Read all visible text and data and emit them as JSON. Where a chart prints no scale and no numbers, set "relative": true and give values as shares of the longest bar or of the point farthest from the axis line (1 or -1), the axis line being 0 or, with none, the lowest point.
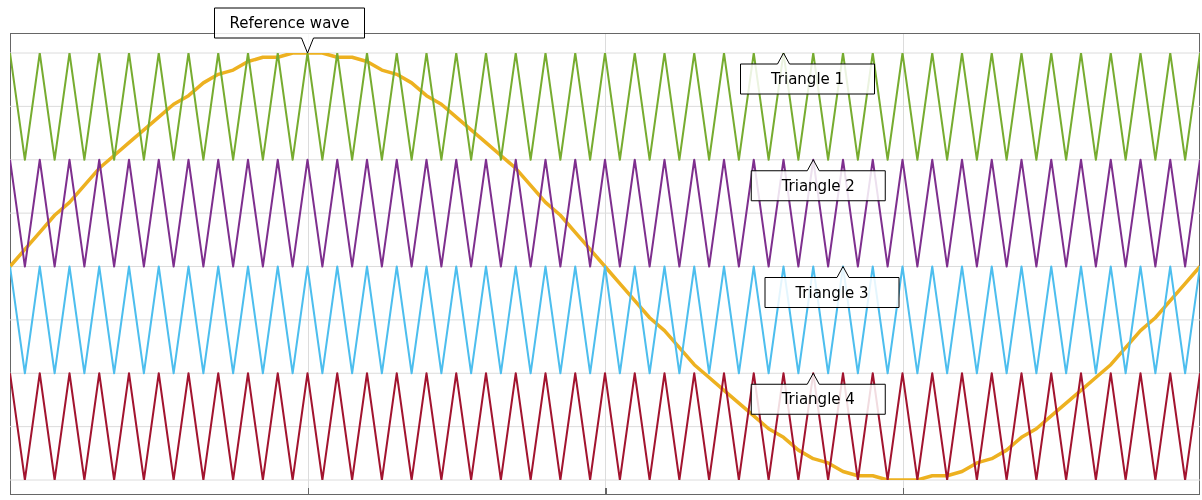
{
  "chart_data": {
    "type": "line",
    "relative": true,
    "grid": true,
    "legend": false,
    "marker": "none",
    "line_style": "solid",
    "categories": [
      null,
      null,
      null,
      null,
      null,
      null,
      null,
      null,
      null,
      null,
      null,
      null,
      null,
      null,
      null,
      null,
      null,
      null,
      null,
      null,
      null,
      null,
      null,
      null,
      null,
      null,
      null,
      null,
      null,
      null,
      null,
      null,
      null,
      null,
      null,
      null,
      null,
      null,
      null,
      null,
      null,
      null,
      null,
      null,
      null,
      null,
      null,
      null,
      null,
      null,
      null,
      null,
      null,
      null,
      null,
      null,
      null,
      null,
      null,
      null,
      null,
      null,
      null,
      null,
      null,
      null,
      null,
      null,
      null,
      null,
      null,
      null,
      null,
      null,
      null,
      null,
      null,
      null,
      null,
      null,
      null
    ],
    "series": [
      {
        "name": "Reference wave",
        "color": "#edb120",
        "values": [
          0.5,
          0.54,
          0.58,
          0.62,
          0.65,
          0.69,
          0.73,
          0.76,
          0.79,
          0.82,
          0.85,
          0.88,
          0.9,
          0.93,
          0.95,
          0.96,
          0.98,
          0.99,
          0.99,
          1,
          1,
          1,
          0.99,
          0.99,
          0.98,
          0.96,
          0.95,
          0.93,
          0.9,
          0.88,
          0.85,
          0.82,
          0.79,
          0.76,
          0.73,
          0.69,
          0.65,
          0.62,
          0.58,
          0.54,
          0.5,
          0.46,
          0.42,
          0.38,
          0.35,
          0.31,
          0.27,
          0.24,
          0.21,
          0.18,
          0.15,
          0.12,
          0.1,
          0.07,
          0.05,
          0.04,
          0.02,
          0.01,
          0.01,
          0,
          0,
          0,
          0.01,
          0.01,
          0.02,
          0.04,
          0.05,
          0.07,
          0.1,
          0.12,
          0.15,
          0.18,
          0.21,
          0.24,
          0.27,
          0.31,
          0.35,
          0.38,
          0.42,
          0.46,
          0.5
        ]
      },
      {
        "name": "Triangle 1",
        "color": "#77ac30",
        "values": [
          1,
          0.75,
          1,
          0.75,
          1,
          0.75,
          1,
          0.75,
          1,
          0.75,
          1,
          0.75,
          1,
          0.75,
          1,
          0.75,
          1,
          0.75,
          1,
          0.75,
          1,
          0.75,
          1,
          0.75,
          1,
          0.75,
          1,
          0.75,
          1,
          0.75,
          1,
          0.75,
          1,
          0.75,
          1,
          0.75,
          1,
          0.75,
          1,
          0.75,
          1,
          0.75,
          1,
          0.75,
          1,
          0.75,
          1,
          0.75,
          1,
          0.75,
          1,
          0.75,
          1,
          0.75,
          1,
          0.75,
          1,
          0.75,
          1,
          0.75,
          1,
          0.75,
          1,
          0.75,
          1,
          0.75,
          1,
          0.75,
          1,
          0.75,
          1,
          0.75,
          1,
          0.75,
          1,
          0.75,
          1,
          0.75,
          1,
          0.75,
          1
        ]
      },
      {
        "name": "Triangle 2",
        "color": "#7e2f8e",
        "values": [
          0.75,
          0.5,
          0.75,
          0.5,
          0.75,
          0.5,
          0.75,
          0.5,
          0.75,
          0.5,
          0.75,
          0.5,
          0.75,
          0.5,
          0.75,
          0.5,
          0.75,
          0.5,
          0.75,
          0.5,
          0.75,
          0.5,
          0.75,
          0.5,
          0.75,
          0.5,
          0.75,
          0.5,
          0.75,
          0.5,
          0.75,
          0.5,
          0.75,
          0.5,
          0.75,
          0.5,
          0.75,
          0.5,
          0.75,
          0.5,
          0.75,
          0.5,
          0.75,
          0.5,
          0.75,
          0.5,
          0.75,
          0.5,
          0.75,
          0.5,
          0.75,
          0.5,
          0.75,
          0.5,
          0.75,
          0.5,
          0.75,
          0.5,
          0.75,
          0.5,
          0.75,
          0.5,
          0.75,
          0.5,
          0.75,
          0.5,
          0.75,
          0.5,
          0.75,
          0.5,
          0.75,
          0.5,
          0.75,
          0.5,
          0.75,
          0.5,
          0.75,
          0.5,
          0.75,
          0.5,
          0.75
        ]
      },
      {
        "name": "Triangle 3",
        "color": "#4dbeee",
        "values": [
          0.5,
          0.25,
          0.5,
          0.25,
          0.5,
          0.25,
          0.5,
          0.25,
          0.5,
          0.25,
          0.5,
          0.25,
          0.5,
          0.25,
          0.5,
          0.25,
          0.5,
          0.25,
          0.5,
          0.25,
          0.5,
          0.25,
          0.5,
          0.25,
          0.5,
          0.25,
          0.5,
          0.25,
          0.5,
          0.25,
          0.5,
          0.25,
          0.5,
          0.25,
          0.5,
          0.25,
          0.5,
          0.25,
          0.5,
          0.25,
          0.5,
          0.25,
          0.5,
          0.25,
          0.5,
          0.25,
          0.5,
          0.25,
          0.5,
          0.25,
          0.5,
          0.25,
          0.5,
          0.25,
          0.5,
          0.25,
          0.5,
          0.25,
          0.5,
          0.25,
          0.5,
          0.25,
          0.5,
          0.25,
          0.5,
          0.25,
          0.5,
          0.25,
          0.5,
          0.25,
          0.5,
          0.25,
          0.5,
          0.25,
          0.5,
          0.25,
          0.5,
          0.25,
          0.5,
          0.25,
          0.5
        ]
      },
      {
        "name": "Triangle 4",
        "color": "#a2142f",
        "values": [
          0.25,
          0,
          0.25,
          0,
          0.25,
          0,
          0.25,
          0,
          0.25,
          0,
          0.25,
          0,
          0.25,
          0,
          0.25,
          0,
          0.25,
          0,
          0.25,
          0,
          0.25,
          0,
          0.25,
          0,
          0.25,
          0,
          0.25,
          0,
          0.25,
          0,
          0.25,
          0,
          0.25,
          0,
          0.25,
          0,
          0.25,
          0,
          0.25,
          0,
          0.25,
          0,
          0.25,
          0,
          0.25,
          0,
          0.25,
          0,
          0.25,
          0,
          0.25,
          0,
          0.25,
          0,
          0.25,
          0,
          0.25,
          0,
          0.25,
          0,
          0.25,
          0,
          0.25,
          0,
          0.25,
          0,
          0.25,
          0,
          0.25,
          0,
          0.25,
          0,
          0.25,
          0,
          0.25,
          0,
          0.25,
          0,
          0.25,
          0,
          0.25
        ]
      }
    ]
  }
}
